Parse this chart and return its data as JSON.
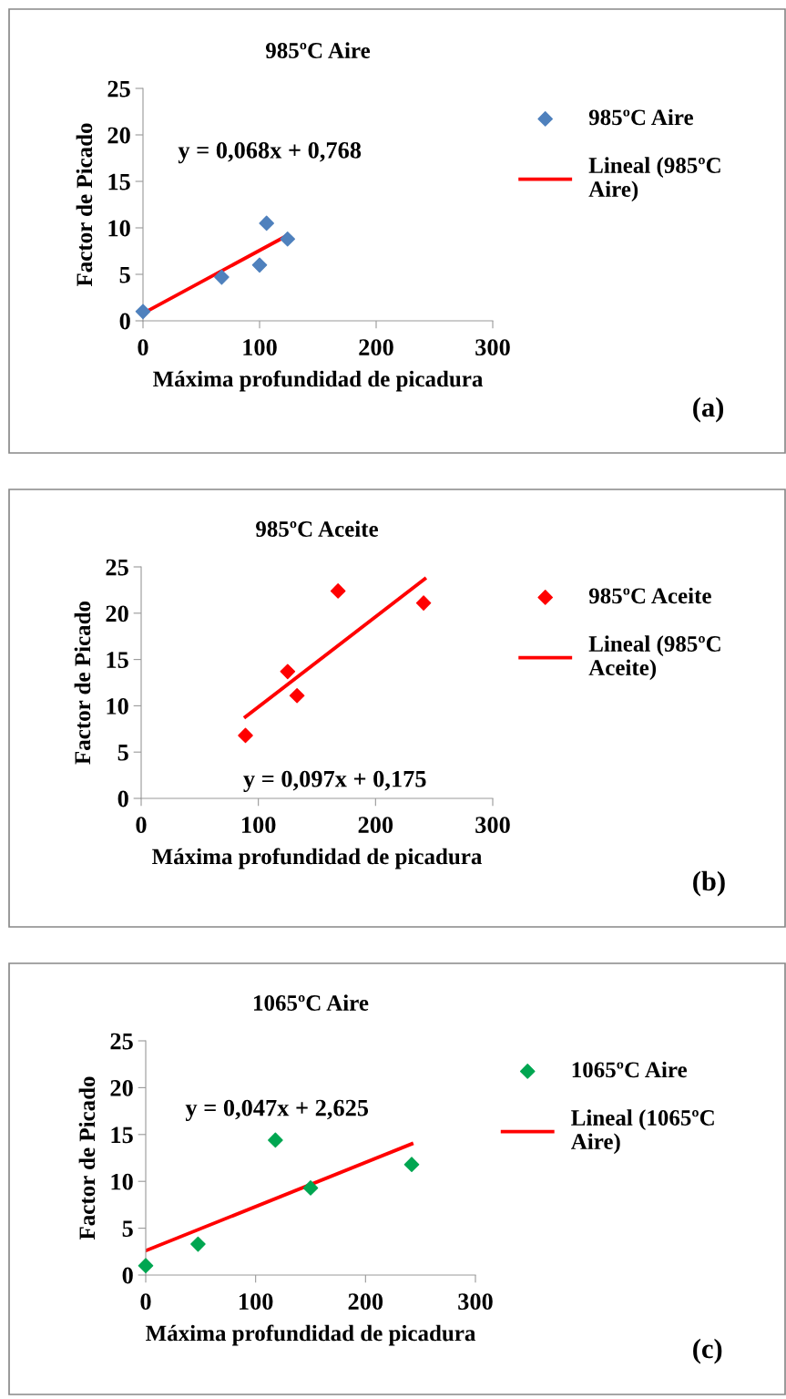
{
  "chart_data": [
    {
      "type": "scatter",
      "title": "985ºC Aire",
      "xlabel": "Máxima profundidad de picadura",
      "ylabel": "Factor de Picado",
      "annotations": [
        "y = 0,068x + 0,768",
        "(a)"
      ],
      "legend": "right",
      "grid": false,
      "xlim": [
        0,
        300
      ],
      "ylim": [
        0,
        25
      ],
      "xticks": [
        0,
        100,
        200,
        300
      ],
      "yticks": [
        0,
        5,
        10,
        15,
        20,
        25
      ],
      "series": [
        {
          "name": "985ºC Aire",
          "color": "#4f81bd",
          "marker": "diamond",
          "x": [
            0,
            67.5,
            100,
            106,
            124
          ],
          "values": [
            1.0,
            4.7,
            6.0,
            10.5,
            8.8
          ]
        },
        {
          "name": "Lineal (985ºC\nAire)",
          "type": "line",
          "color": "#ff0000",
          "marker": "none",
          "x": [
            0,
            124
          ],
          "values": [
            0.8,
            9.2
          ]
        }
      ]
    },
    {
      "type": "scatter",
      "title": "985ºC Aceite",
      "xlabel": "Máxima profundidad de picadura",
      "ylabel": "Factor de Picado",
      "annotations": [
        "y = 0,097x + 0,175",
        "(b)"
      ],
      "legend": "right",
      "grid": false,
      "xlim": [
        0,
        300
      ],
      "ylim": [
        0,
        25
      ],
      "xticks": [
        0,
        100,
        200,
        300
      ],
      "yticks": [
        0,
        5,
        10,
        15,
        20,
        25
      ],
      "series": [
        {
          "name": "985ºC Aceite",
          "color": "#ff0000",
          "marker": "diamond",
          "x": [
            89,
            125,
            133,
            168,
            241
          ],
          "values": [
            6.8,
            13.7,
            11.1,
            22.4,
            21.1
          ]
        },
        {
          "name": "Lineal (985ºC\nAceite)",
          "type": "line",
          "color": "#ff0000",
          "marker": "none",
          "x": [
            89,
            242
          ],
          "values": [
            8.8,
            23.7
          ]
        }
      ]
    },
    {
      "type": "scatter",
      "title": "1065ºC Aire",
      "xlabel": "Máxima profundidad de picadura",
      "ylabel": "Factor de Picado",
      "annotations": [
        "y = 0,047x + 2,625",
        "(c)"
      ],
      "legend": "right",
      "grid": false,
      "xlim": [
        0,
        300
      ],
      "ylim": [
        0,
        25
      ],
      "xticks": [
        0,
        100,
        200,
        300
      ],
      "yticks": [
        0,
        5,
        10,
        15,
        20,
        25
      ],
      "series": [
        {
          "name": "1065ºC Aire",
          "color": "#00a651",
          "marker": "diamond",
          "x": [
            0,
            47.6,
            118,
            150,
            242
          ],
          "values": [
            1.0,
            3.3,
            14.4,
            9.3,
            11.8
          ]
        },
        {
          "name": "Lineal (1065ºC\nAire)",
          "type": "line",
          "color": "#ff0000",
          "marker": "none",
          "x": [
            0,
            242
          ],
          "values": [
            2.6,
            14.0
          ]
        }
      ]
    }
  ]
}
